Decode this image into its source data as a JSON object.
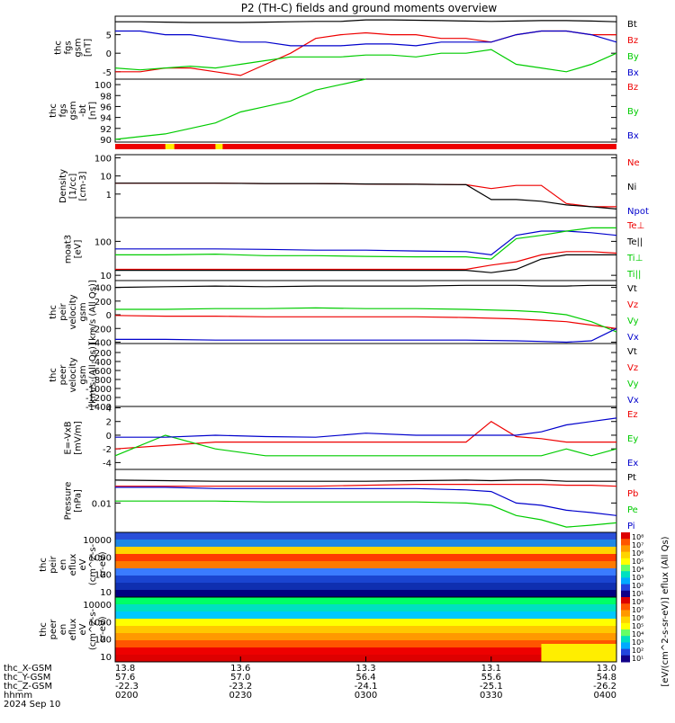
{
  "title": "P2 (TH-C) fields and ground moments overview",
  "colors": {
    "black": "#000000",
    "red": "#ee0000",
    "green": "#00cc00",
    "blue": "#0000cc",
    "yellow": "#ffee00"
  },
  "chart_data": [
    {
      "id": "fgs",
      "type": "line",
      "ylabel": [
        "thc",
        "fgs",
        "gsm",
        "[nT]"
      ],
      "ylim": [
        -7,
        10
      ],
      "yticks": [
        -5,
        0,
        5
      ],
      "legend": [
        {
          "name": "Bt",
          "color": "#000000"
        },
        {
          "name": "Bz",
          "color": "#ee0000"
        },
        {
          "name": "By",
          "color": "#00cc00"
        },
        {
          "name": "Bx",
          "color": "#0000cc"
        }
      ],
      "x": [
        0,
        0.05,
        0.1,
        0.15,
        0.2,
        0.25,
        0.3,
        0.35,
        0.4,
        0.45,
        0.5,
        0.55,
        0.6,
        0.65,
        0.7,
        0.75,
        0.8,
        0.85,
        0.9,
        0.95,
        1
      ],
      "series": [
        {
          "name": "Bt",
          "color": "#000000",
          "values": [
            8.5,
            8.5,
            8.4,
            8.3,
            8.3,
            8.3,
            8.4,
            8.5,
            8.6,
            8.6,
            9,
            9,
            8.9,
            8.8,
            8.7,
            8.6,
            8.7,
            8.8,
            8.8,
            8.7,
            8.5
          ]
        },
        {
          "name": "Bz",
          "color": "#ee0000",
          "values": [
            -5,
            -5,
            -4,
            -4,
            -5,
            -6,
            -3,
            0,
            4,
            5,
            5.5,
            5,
            5,
            4,
            4,
            3,
            5,
            6,
            6,
            5,
            5
          ]
        },
        {
          "name": "By",
          "color": "#00cc00",
          "values": [
            -4,
            -4.5,
            -4,
            -3.5,
            -4,
            -3,
            -2,
            -1,
            -1,
            -1,
            -0.5,
            -0.5,
            -1,
            0,
            0,
            1,
            -3,
            -4,
            -5,
            -3,
            0
          ]
        },
        {
          "name": "Bx",
          "color": "#0000cc",
          "values": [
            6,
            6,
            5,
            5,
            4,
            3,
            3,
            2,
            2,
            2,
            2.5,
            2.5,
            2,
            3,
            3,
            3,
            5,
            6,
            6,
            5,
            3
          ]
        }
      ]
    },
    {
      "id": "fgs-bt",
      "type": "line",
      "ylabel": [
        "thc",
        "fgs",
        "gsm",
        "-bt",
        "[nT]"
      ],
      "ylim": [
        89.5,
        101
      ],
      "yticks": [
        90,
        92,
        94,
        96,
        98,
        100
      ],
      "legend": [
        {
          "name": "Bz",
          "color": "#ee0000"
        },
        {
          "name": "By",
          "color": "#00cc00"
        },
        {
          "name": "Bx",
          "color": "#0000cc"
        }
      ],
      "x": [
        0,
        0.05,
        0.1,
        0.15,
        0.2,
        0.25,
        0.3,
        0.35,
        0.4,
        0.45,
        0.5
      ],
      "series": [
        {
          "name": "Bt",
          "color": "#00cc00",
          "values": [
            90,
            90.5,
            91,
            92,
            93,
            95,
            96,
            97,
            99,
            100,
            101
          ]
        }
      ]
    },
    {
      "id": "density",
      "type": "line",
      "ylog": true,
      "ylabel": [
        "Density",
        "[1/cc]",
        "[cm-3]"
      ],
      "ylim": [
        0.05,
        150
      ],
      "yticks": [
        1,
        10,
        100
      ],
      "legend": [
        {
          "name": "Ne",
          "color": "#ee0000"
        },
        {
          "name": "Ni",
          "color": "#000000"
        },
        {
          "name": "Npot",
          "color": "#0000cc"
        }
      ],
      "x": [
        0,
        0.1,
        0.2,
        0.3,
        0.4,
        0.5,
        0.6,
        0.7,
        0.75,
        0.8,
        0.85,
        0.9,
        0.95,
        1
      ],
      "series": [
        {
          "name": "Ne",
          "color": "#ee0000",
          "values": [
            4,
            4,
            4,
            3.8,
            3.8,
            3.6,
            3.5,
            3.3,
            2,
            3,
            3,
            0.3,
            0.2,
            0.2
          ]
        },
        {
          "name": "Ni",
          "color": "#000000",
          "values": [
            4,
            4,
            4,
            3.8,
            3.8,
            3.6,
            3.5,
            3.3,
            0.5,
            0.5,
            0.4,
            0.25,
            0.2,
            0.15
          ]
        }
      ]
    },
    {
      "id": "temp",
      "type": "line",
      "ylog": true,
      "ylabel": [
        "moat3",
        "[eV]"
      ],
      "ylim": [
        7,
        500
      ],
      "yticks": [
        10,
        100
      ],
      "legend": [
        {
          "name": "Te⊥",
          "color": "#ee0000"
        },
        {
          "name": "Te||",
          "color": "#000000"
        },
        {
          "name": "Ti⊥",
          "color": "#00cc00"
        },
        {
          "name": "Ti||",
          "color": "#00cc00"
        }
      ],
      "x": [
        0,
        0.1,
        0.2,
        0.3,
        0.4,
        0.5,
        0.6,
        0.7,
        0.75,
        0.8,
        0.85,
        0.9,
        0.95,
        1
      ],
      "series": [
        {
          "name": "Ti",
          "color": "#0000cc",
          "values": [
            60,
            60,
            60,
            58,
            55,
            55,
            52,
            50,
            40,
            150,
            200,
            200,
            180,
            150
          ]
        },
        {
          "name": "Ti⊥",
          "color": "#00cc00",
          "values": [
            40,
            40,
            42,
            38,
            38,
            36,
            35,
            35,
            30,
            120,
            150,
            200,
            250,
            250
          ]
        },
        {
          "name": "Te⊥",
          "color": "#ee0000",
          "values": [
            15,
            15,
            15,
            15,
            15,
            15,
            15,
            15,
            20,
            25,
            40,
            50,
            50,
            45
          ]
        },
        {
          "name": "Te||",
          "color": "#000000",
          "values": [
            14,
            14,
            14,
            14,
            14,
            14,
            14,
            14,
            12,
            15,
            30,
            40,
            40,
            40
          ]
        }
      ]
    },
    {
      "id": "velocity",
      "type": "line",
      "ylabel": [
        "thc",
        "peir",
        "velocity",
        "gsm",
        "[km/s (All Qs)]"
      ],
      "ylim": [
        -420,
        500
      ],
      "yticks": [
        -400,
        -200,
        0,
        200,
        400
      ],
      "legend": [
        {
          "name": "Vt",
          "color": "#000000"
        },
        {
          "name": "Vz",
          "color": "#ee0000"
        },
        {
          "name": "Vy",
          "color": "#00cc00"
        },
        {
          "name": "Vx",
          "color": "#0000cc"
        }
      ],
      "x": [
        0,
        0.1,
        0.2,
        0.3,
        0.4,
        0.5,
        0.6,
        0.7,
        0.8,
        0.85,
        0.9,
        0.95,
        1
      ],
      "series": [
        {
          "name": "Vt",
          "color": "#000000",
          "values": [
            400,
            410,
            420,
            410,
            420,
            420,
            420,
            430,
            430,
            420,
            420,
            430,
            430
          ]
        },
        {
          "name": "Vz",
          "color": "#ee0000",
          "values": [
            -10,
            -20,
            -20,
            -30,
            -30,
            -30,
            -30,
            -40,
            -60,
            -80,
            -100,
            -150,
            -200
          ]
        },
        {
          "name": "Vy",
          "color": "#00cc00",
          "values": [
            80,
            80,
            90,
            90,
            100,
            90,
            90,
            80,
            60,
            40,
            0,
            -100,
            -250
          ]
        },
        {
          "name": "Vx",
          "color": "#0000cc",
          "values": [
            -360,
            -360,
            -370,
            -370,
            -370,
            -370,
            -370,
            -370,
            -380,
            -390,
            -400,
            -380,
            -200
          ]
        }
      ]
    },
    {
      "id": "peer-velocity",
      "type": "line",
      "ylabel": [
        "thc",
        "peer",
        "velocity",
        "gsm",
        "[km/s (All Qs)]"
      ],
      "ylim": [
        -1400,
        0
      ],
      "yticks": [
        -1400,
        -1200,
        -1000,
        -800,
        -600,
        -400,
        -200
      ],
      "legend": [
        {
          "name": "Vt",
          "color": "#000000"
        },
        {
          "name": "Vz",
          "color": "#ee0000"
        },
        {
          "name": "Vy",
          "color": "#00cc00"
        },
        {
          "name": "Vx",
          "color": "#0000cc"
        }
      ],
      "x": [],
      "series": []
    },
    {
      "id": "efield",
      "type": "line",
      "ylabel": [
        "E=-VxB",
        "[mV/m]"
      ],
      "ylim": [
        -5,
        4.2
      ],
      "yticks": [
        -4,
        -2,
        0,
        2,
        4
      ],
      "legend": [
        {
          "name": "Ez",
          "color": "#ee0000"
        },
        {
          "name": "Ey",
          "color": "#00cc00"
        },
        {
          "name": "Ex",
          "color": "#0000cc"
        }
      ],
      "x": [
        0,
        0.1,
        0.2,
        0.3,
        0.4,
        0.5,
        0.6,
        0.7,
        0.75,
        0.8,
        0.85,
        0.9,
        0.95,
        1
      ],
      "series": [
        {
          "name": "Ez",
          "color": "#ee0000",
          "values": [
            -2,
            -1.5,
            -1,
            -1,
            -1,
            -1,
            -1,
            -1,
            2,
            -0.2,
            -0.5,
            -1,
            -1,
            -1
          ]
        },
        {
          "name": "Ey",
          "color": "#00cc00",
          "values": [
            -3,
            0,
            -2,
            -3,
            -3,
            -3,
            -3,
            -3,
            -3,
            -3,
            -3,
            -2,
            -3,
            -2
          ]
        },
        {
          "name": "Ex",
          "color": "#0000cc",
          "values": [
            -0.3,
            -0.3,
            0,
            -0.2,
            -0.3,
            0.3,
            0,
            0,
            0,
            0,
            0.5,
            1.5,
            2,
            2.5
          ]
        }
      ]
    },
    {
      "id": "pressure",
      "type": "line",
      "ylog": true,
      "ylabel": [
        "Pressure",
        "[nPa]"
      ],
      "ylim": [
        0.0006,
        0.25
      ],
      "yticks": [
        0.01
      ],
      "legend": [
        {
          "name": "Pt",
          "color": "#000000"
        },
        {
          "name": "Pb",
          "color": "#ee0000"
        },
        {
          "name": "Pe",
          "color": "#00cc00"
        },
        {
          "name": "Pi",
          "color": "#0000cc"
        }
      ],
      "x": [
        0,
        0.1,
        0.2,
        0.3,
        0.4,
        0.5,
        0.6,
        0.7,
        0.75,
        0.8,
        0.85,
        0.9,
        0.95,
        1
      ],
      "series": [
        {
          "name": "Pt",
          "color": "#000000",
          "values": [
            0.09,
            0.085,
            0.08,
            0.08,
            0.08,
            0.08,
            0.085,
            0.09,
            0.085,
            0.09,
            0.09,
            0.08,
            0.08,
            0.08
          ]
        },
        {
          "name": "Pb",
          "color": "#ee0000",
          "values": [
            0.05,
            0.05,
            0.05,
            0.05,
            0.05,
            0.055,
            0.06,
            0.06,
            0.06,
            0.06,
            0.06,
            0.055,
            0.055,
            0.05
          ]
        },
        {
          "name": "Pi",
          "color": "#0000cc",
          "values": [
            0.045,
            0.045,
            0.04,
            0.04,
            0.04,
            0.04,
            0.04,
            0.035,
            0.03,
            0.01,
            0.008,
            0.005,
            0.004,
            0.003
          ]
        },
        {
          "name": "Pe",
          "color": "#00cc00",
          "values": [
            0.012,
            0.012,
            0.012,
            0.011,
            0.011,
            0.011,
            0.011,
            0.01,
            0.008,
            0.003,
            0.002,
            0.001,
            0.0012,
            0.0015
          ]
        }
      ]
    },
    {
      "id": "peir-spec",
      "type": "heatmap",
      "ylabel": [
        "thc",
        "peir",
        "en",
        "eflux",
        "eV",
        "(cm^2-s-",
        "sr-eV)"
      ],
      "yticks": [
        "10000",
        "1000",
        "100",
        "10"
      ]
    },
    {
      "id": "peer-spec",
      "type": "heatmap",
      "ylabel": [
        "thc",
        "peer",
        "en",
        "eflux",
        "eV",
        "(cm^2-s-",
        "sr-eV)"
      ],
      "yticks": [
        "10000",
        "1000",
        "100",
        "10"
      ]
    }
  ],
  "colorbar": {
    "label": "[eV/(cm^2-s-sr-eV)] eflux (All Qs)",
    "ticks_top": [
      "10⁸",
      "10⁷",
      "10⁶",
      "10⁵",
      "10⁴",
      "10³",
      "10²",
      "10¹"
    ],
    "ticks_bottom": [
      "10⁸",
      "10⁷",
      "10⁶",
      "10⁵",
      "10⁴",
      "10³",
      "10²",
      "10¹"
    ]
  },
  "xaxis": {
    "rows": [
      {
        "label": "thc_X-GSM",
        "values": [
          "13.8",
          "13.6",
          "13.3",
          "13.1",
          "13.0"
        ]
      },
      {
        "label": "thc_Y-GSM",
        "values": [
          "57.6",
          "57.0",
          "56.4",
          "55.6",
          "54.8"
        ]
      },
      {
        "label": "thc_Z-GSM",
        "values": [
          "-22.3",
          "-23.2",
          "-24.1",
          "-25.1",
          "-26.2"
        ]
      },
      {
        "label": "hhmm",
        "values": [
          "0200",
          "0230",
          "0300",
          "0330",
          "0400"
        ]
      }
    ],
    "date": "2024 Sep 10"
  },
  "status_bar": {
    "segments": [
      "red",
      "yellow",
      "red",
      "yellow",
      "red"
    ]
  }
}
